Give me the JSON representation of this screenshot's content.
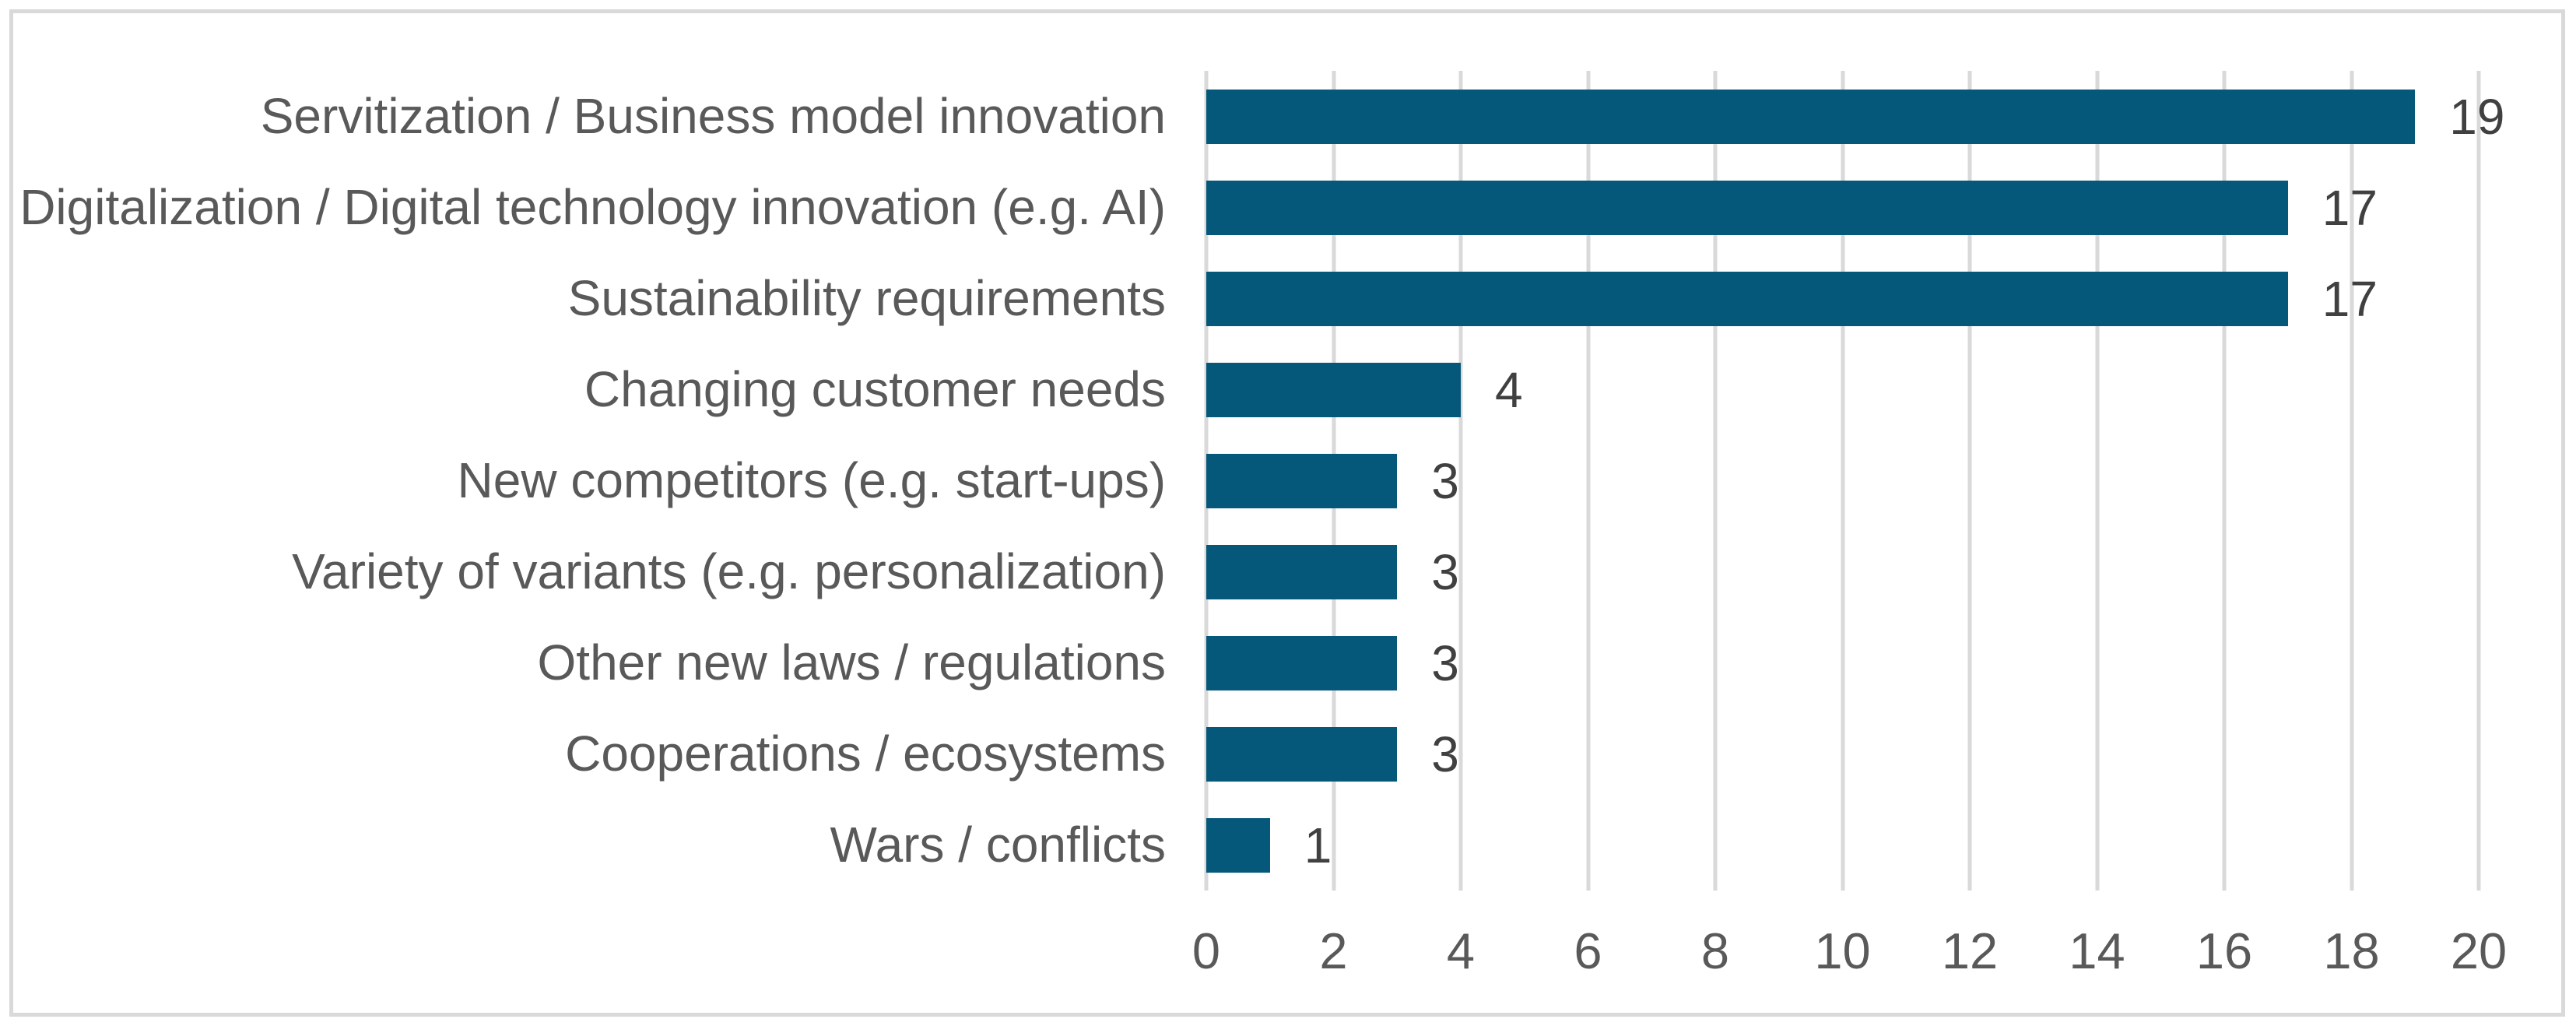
{
  "chart_data": {
    "type": "bar",
    "orientation": "horizontal",
    "title": "",
    "xlabel": "",
    "ylabel": "",
    "categories": [
      "Servitization / Business model innovation",
      "Digitalization / Digital technology innovation (e.g. AI)",
      "Sustainability requirements",
      "Changing customer needs",
      "New competitors (e.g. start-ups)",
      "Variety of variants (e.g. personalization)",
      "Other new laws / regulations",
      "Cooperations / ecosystems",
      "Wars / conflicts"
    ],
    "values": [
      19,
      17,
      17,
      4,
      3,
      3,
      3,
      3,
      1
    ],
    "value_labels": [
      "19",
      "17",
      "17",
      "4",
      "3",
      "3",
      "3",
      "3",
      "1"
    ],
    "xlim": [
      0,
      20
    ],
    "xticks": [
      0,
      2,
      4,
      6,
      8,
      10,
      12,
      14,
      16,
      18,
      20
    ],
    "grid": "vertical-on",
    "legend": "none",
    "colors": {
      "bar": "#06587B",
      "gridline": "#D9D9D9",
      "category_label": "#595959",
      "value_label": "#404040",
      "tick_label": "#595959",
      "frame_border": "#D9D9D9",
      "background": "#FFFFFF"
    }
  }
}
